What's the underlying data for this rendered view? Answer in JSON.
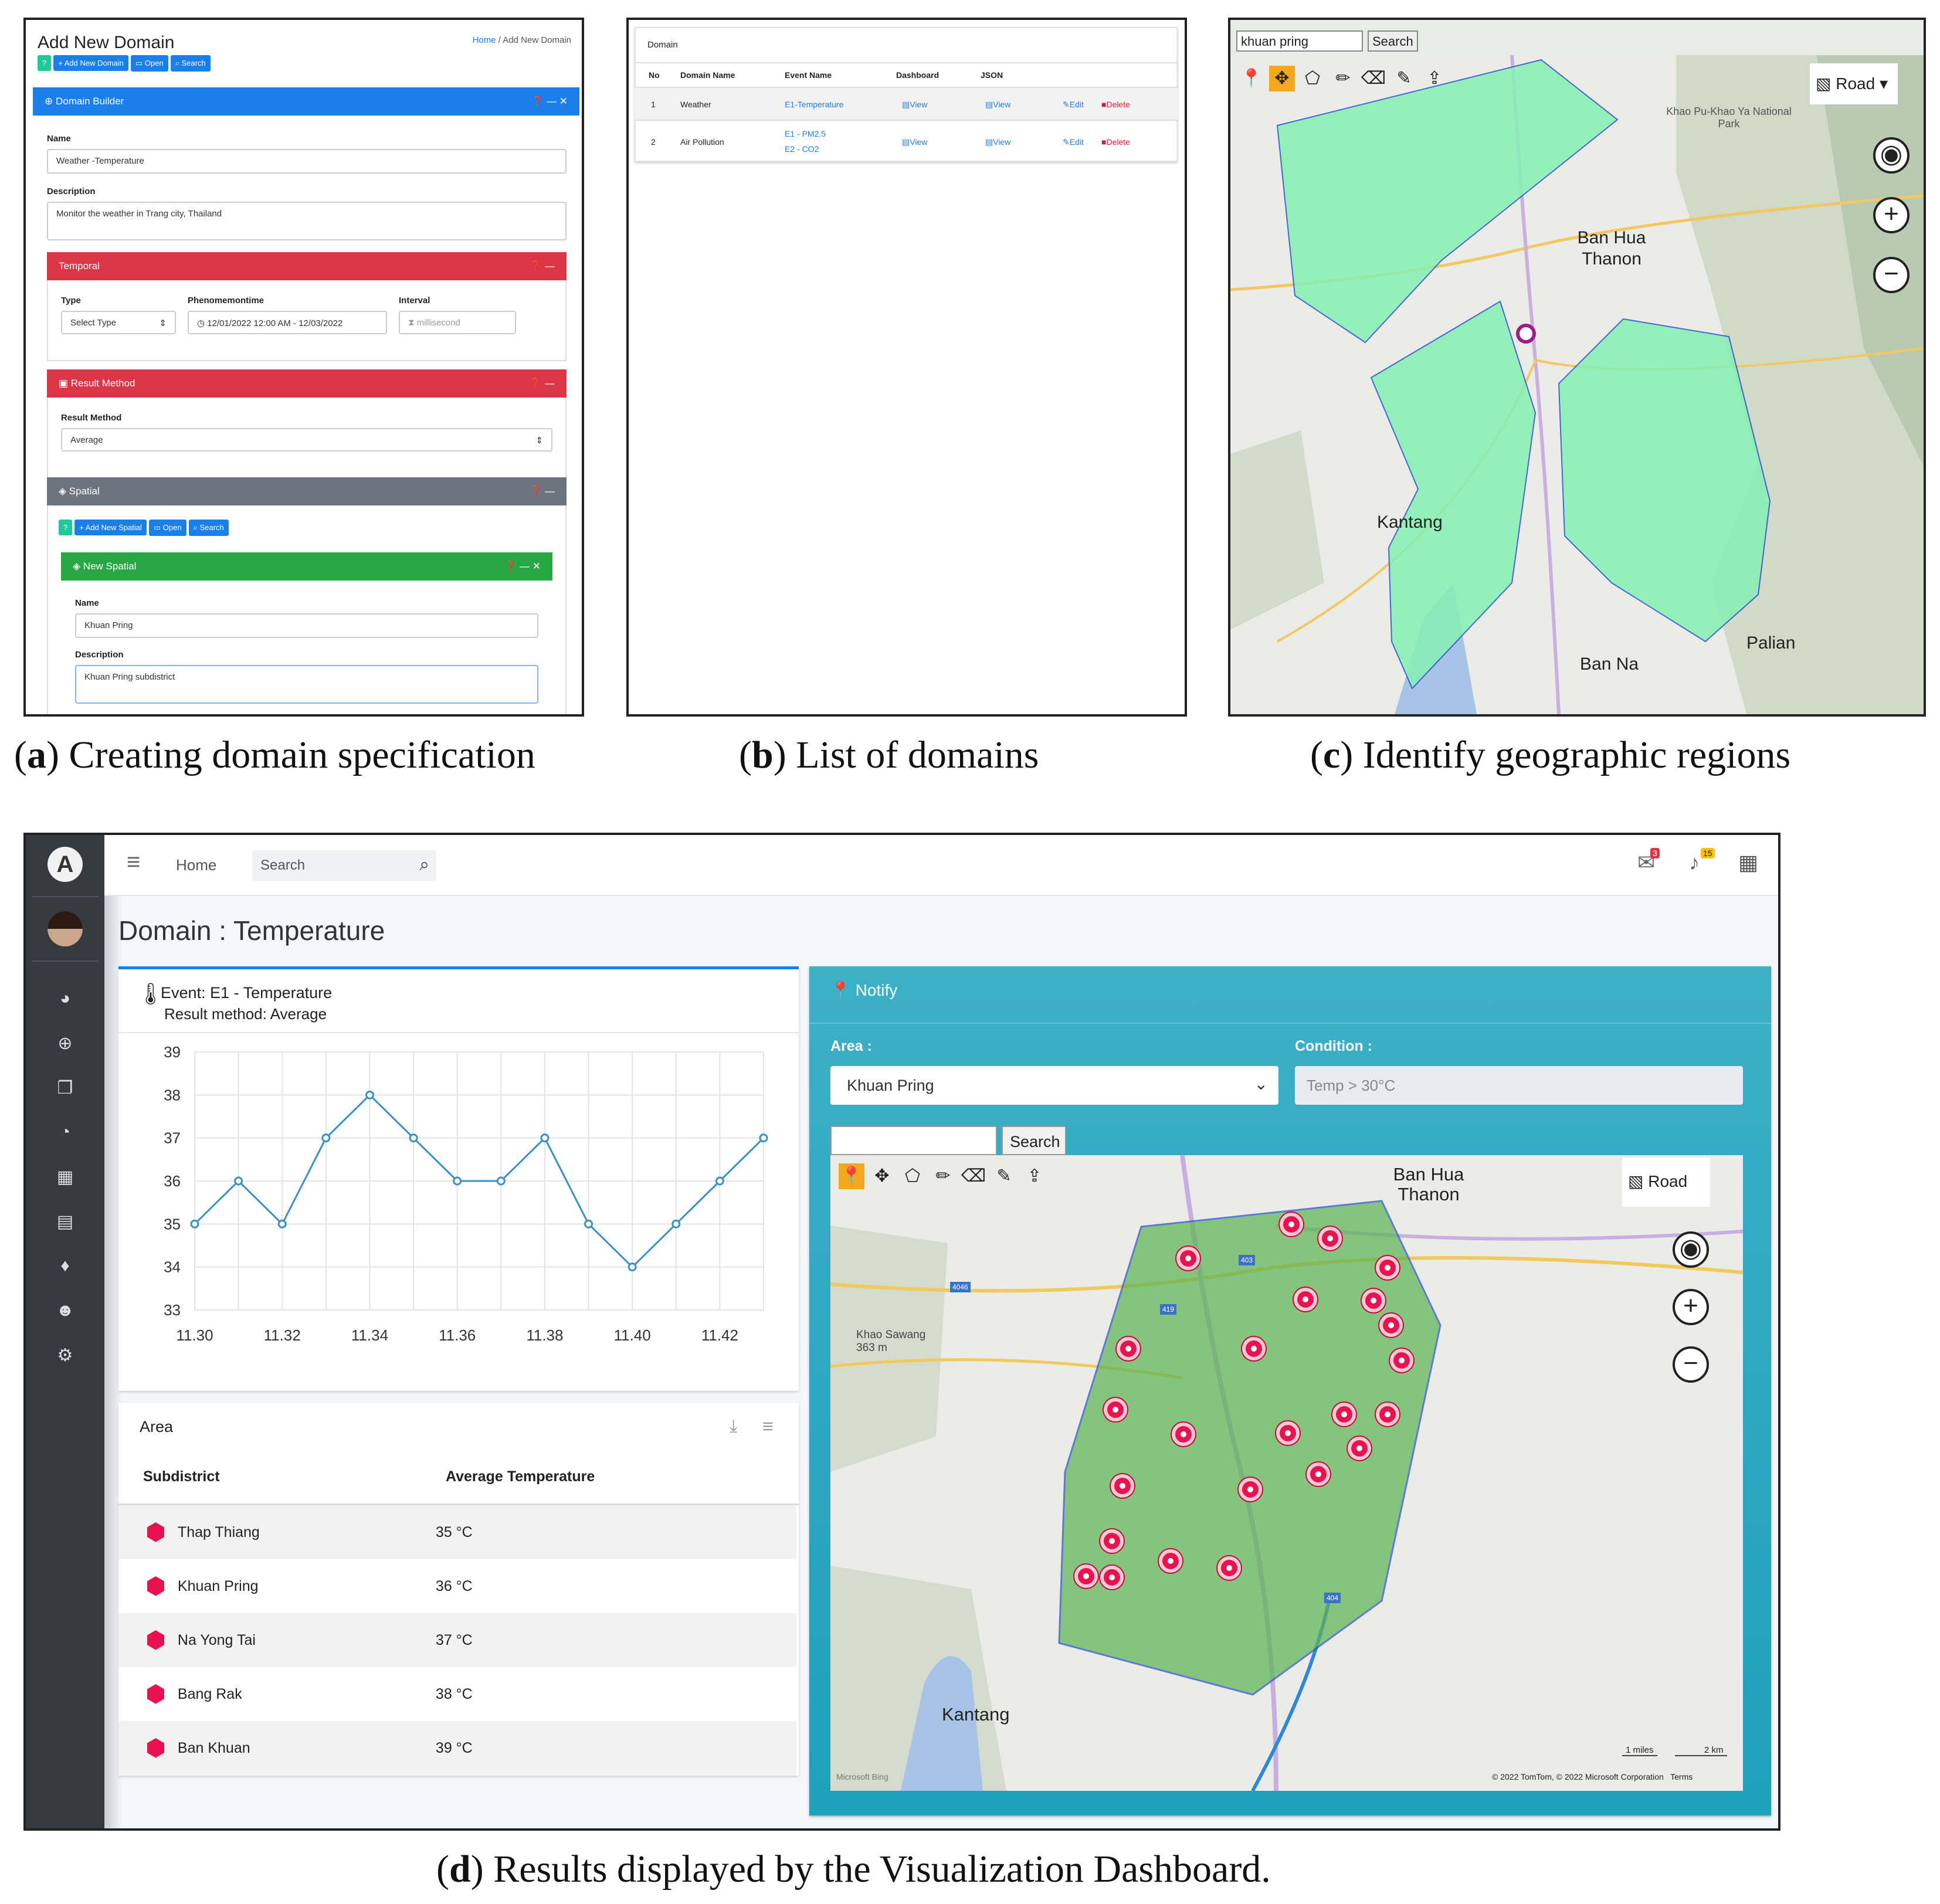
{
  "panel_a": {
    "title": "Add New Domain",
    "breadcrumb_home": "Home",
    "breadcrumb_sep": "/",
    "breadcrumb_current": "Add New Domain",
    "toolbar": {
      "help": "?",
      "add": "+ Add New Domain",
      "open": "Open",
      "search": "Search"
    },
    "builder_title": "Domain Builder",
    "name_label": "Name",
    "name_value": "Weather -Temperature",
    "description_label": "Description",
    "description_value": "Monitor the weather in Trang city, Thailand",
    "temporal_title": "Temporal",
    "type_label": "Type",
    "type_value": "Select Type",
    "phenomenon_label": "Phenomemontime",
    "phenomenon_value": "12/01/2022 12:00 AM - 12/03/2022",
    "interval_label": "Interval",
    "interval_placeholder": "millisecond",
    "result_title": "Result Method",
    "result_label": "Result Method",
    "result_value": "Average",
    "spatial_title": "Spatial",
    "spatial_toolbar": {
      "help": "?",
      "add": "+ Add New Spatial",
      "open": "Open",
      "search": "Search"
    },
    "new_spatial_title": "New Spatial",
    "sp_name_label": "Name",
    "sp_name_value": "Khuan Pring",
    "sp_desc_label": "Description",
    "sp_desc_value": "Khuan Pring subdistrict"
  },
  "panel_b": {
    "title": "Domain",
    "headers": [
      "No",
      "Domain Name",
      "Event Name",
      "Dashboard",
      "JSON"
    ],
    "rows": [
      {
        "no": "1",
        "name": "Weather",
        "event": "E1-Temperature",
        "event2": "",
        "dashboard": "View",
        "json": "View",
        "edit": "Edit",
        "delete": "Delete"
      },
      {
        "no": "2",
        "name": "Air Pollution",
        "event": "E1 - PM2.5",
        "event2": "E2 - CO2",
        "dashboard": "View",
        "json": "View",
        "edit": "Edit",
        "delete": "Delete"
      }
    ]
  },
  "panel_c": {
    "search_value": "khuan pring",
    "search_button": "Search",
    "layer_label": "Road",
    "places": {
      "park": "Khao Pu-Khao Ya National Park",
      "banhua": "Ban Hua Thanon",
      "kantang": "Kantang",
      "banna": "Ban Na",
      "palian": "Palian"
    }
  },
  "panel_d": {
    "nav_home": "Home",
    "search_placeholder": "Search",
    "msg_badge": "3",
    "bell_badge": "15",
    "page_title": "Domain : Temperature",
    "event_title": "Event: E1 - Temperature",
    "result_method": "Result method: Average",
    "area_title": "Area",
    "col_subdistrict": "Subdistrict",
    "col_avg": "Average Temperature",
    "areas": [
      {
        "name": "Thap Thiang",
        "temp": "35 °C"
      },
      {
        "name": "Khuan Pring",
        "temp": "36 °C"
      },
      {
        "name": "Na Yong Tai",
        "temp": "37 °C"
      },
      {
        "name": "Bang Rak",
        "temp": "38 °C"
      },
      {
        "name": "Ban Khuan",
        "temp": "39 °C"
      }
    ],
    "notify_title": "Notify",
    "area_label": "Area :",
    "area_value": "Khuan Pring",
    "condition_label": "Condition :",
    "condition_value": "Temp > 30°C",
    "map_search_button": "Search",
    "map_layer": "Road",
    "map_places": {
      "banhua": "Ban Hua Thanon",
      "kantang": "Kantang",
      "khaosawang": "Khao Sawang",
      "khaosawang_elev": "363 m"
    },
    "map_scale": {
      "miles": "1 miles",
      "km": "2 km"
    },
    "map_credit": "© 2022 TomTom, © 2022 Microsoft Corporation   Terms",
    "map_brand": "Microsoft Bing",
    "road_labels": [
      "403",
      "419",
      "4046",
      "404"
    ]
  },
  "chart_data": {
    "type": "line",
    "x": [
      11.3,
      11.31,
      11.32,
      11.33,
      11.34,
      11.35,
      11.36,
      11.37,
      11.38,
      11.39,
      11.4,
      11.41,
      11.42,
      11.43
    ],
    "series": [
      {
        "values": [
          35,
          36,
          35,
          37,
          38,
          37,
          36,
          36,
          37,
          35,
          34,
          35,
          36,
          37
        ]
      }
    ],
    "x_ticks": [
      "11.30",
      "11.32",
      "11.34",
      "11.36",
      "11.38",
      "11.40",
      "11.42"
    ],
    "y_ticks": [
      "33",
      "34",
      "35",
      "36",
      "37",
      "38",
      "39"
    ],
    "ylim": [
      33,
      39
    ],
    "xlim": [
      11.3,
      11.43
    ],
    "grid": true,
    "color": "#3a8fc6"
  },
  "captions": {
    "a_letter": "a",
    "a_text": "Creating domain specification",
    "b_letter": "b",
    "b_text": "List of domains",
    "c_letter": "c",
    "c_text": "Identify geographic regions",
    "d_letter": "d",
    "d_text": "Results displayed by the Visualization Dashboard."
  },
  "colors": {
    "blue": "#1a7fe8",
    "red": "#dc3545",
    "grey": "#6c757d",
    "green": "#28a745",
    "teal": "#3ab3c8",
    "sidebar": "#343a40",
    "poly": "#84f0b0"
  }
}
